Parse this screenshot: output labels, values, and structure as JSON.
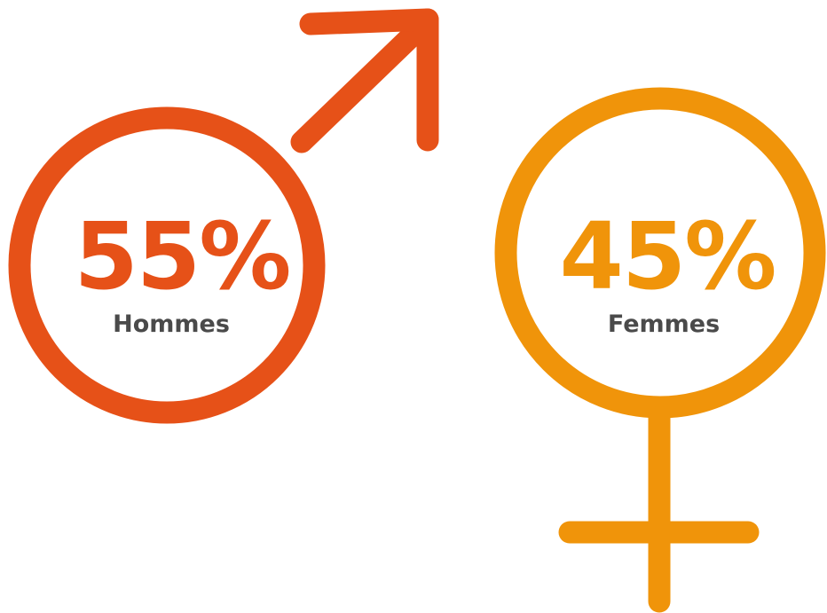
{
  "items": [
    {
      "value": "55%",
      "label": "Hommes"
    },
    {
      "value": "45%",
      "label": "Femmes"
    }
  ]
}
